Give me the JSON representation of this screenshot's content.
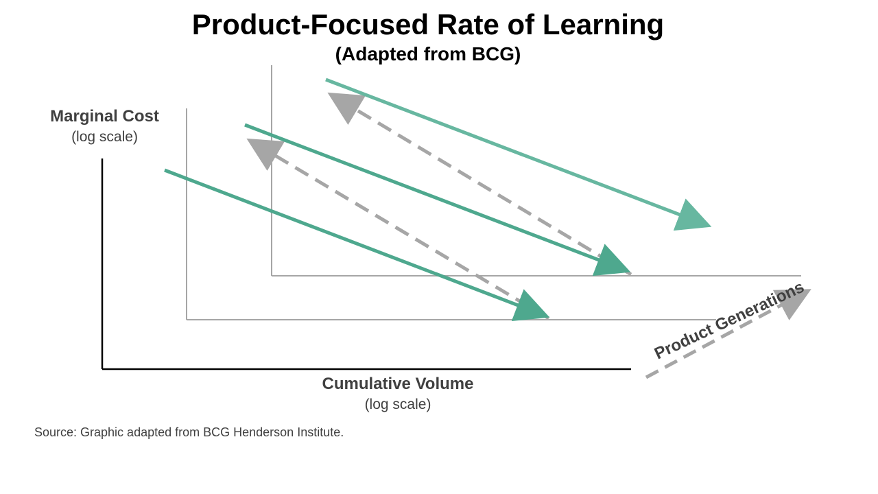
{
  "title": "Product-Focused Rate of Learning",
  "subtitle": "(Adapted from BCG)",
  "y_axis": {
    "label": "Marginal Cost",
    "scale_note": "(log scale)"
  },
  "x_axis": {
    "label": "Cumulative Volume",
    "scale_note": "(log scale)"
  },
  "generations_label": "Product Generations",
  "source": "Source: Graphic adapted from BCG Henderson  Institute.",
  "colors": {
    "learning_curve_front": "#4ea88e",
    "learning_curve_back": "#67b7a0",
    "dashed_arrow": "#a6a6a6",
    "axis_front": "#000000",
    "axis_back": "#a6a6a6",
    "text": "#404040"
  }
}
